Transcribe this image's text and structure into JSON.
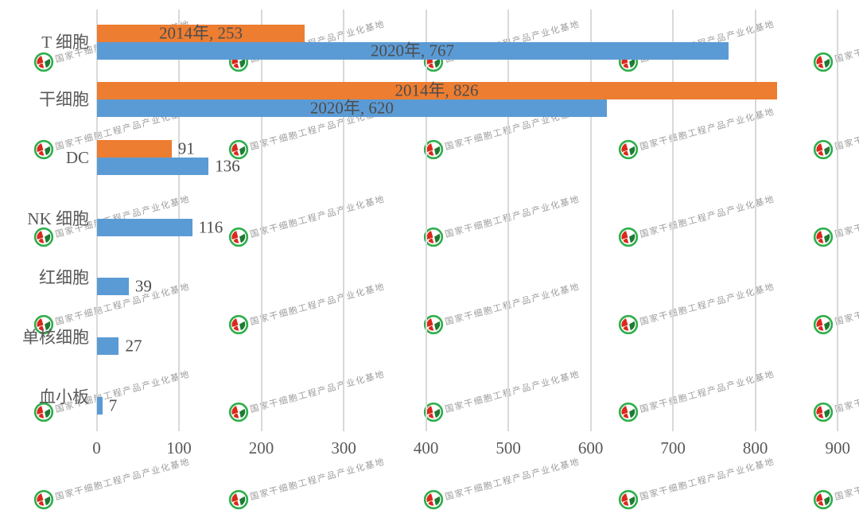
{
  "chart_data": {
    "type": "bar",
    "orientation": "horizontal",
    "title": "",
    "categories": [
      "T 细胞",
      "干细胞",
      "DC",
      "NK 细胞",
      "红细胞",
      "单核细胞",
      "血小板"
    ],
    "series": [
      {
        "name": "2014年",
        "color": "#ED7D31",
        "bars": [
          {
            "value": 253,
            "label": "2014年, 253",
            "placement": "inside-center"
          },
          {
            "value": 826,
            "label": "2014年, 826",
            "placement": "inside-center"
          },
          {
            "value": 91,
            "label": "91",
            "placement": "outside-end"
          },
          null,
          null,
          null,
          null
        ]
      },
      {
        "name": "2020年",
        "color": "#5B9BD5",
        "bars": [
          {
            "value": 767,
            "label": "2020年, 767",
            "placement": "inside-center"
          },
          {
            "value": 620,
            "label": "2020年, 620",
            "placement": "inside-center"
          },
          {
            "value": 136,
            "label": "136",
            "placement": "outside-end"
          },
          {
            "value": 116,
            "label": "116",
            "placement": "outside-end"
          },
          {
            "value": 39,
            "label": "39",
            "placement": "outside-end"
          },
          {
            "value": 27,
            "label": "27",
            "placement": "outside-end"
          },
          {
            "value": 7,
            "label": "7",
            "placement": "outside-end"
          }
        ]
      }
    ],
    "x_axis": {
      "min": 0,
      "max": 900,
      "ticks": [
        0,
        100,
        200,
        300,
        400,
        500,
        600,
        700,
        800,
        900
      ]
    },
    "grid": true,
    "legend": false,
    "colors": {
      "gridline": "#D9D9D9",
      "axis_text": "#595959",
      "data_label_text": "#4D4D4D",
      "background": "#FFFFFF"
    }
  },
  "watermark": {
    "text": "国家干细胞工程产品产业化基地",
    "text_color": "#8A8A8A",
    "logo_colors": {
      "ring": "#2FAE4B",
      "red": "#DA291C",
      "dark_green": "#1E7A34"
    }
  }
}
